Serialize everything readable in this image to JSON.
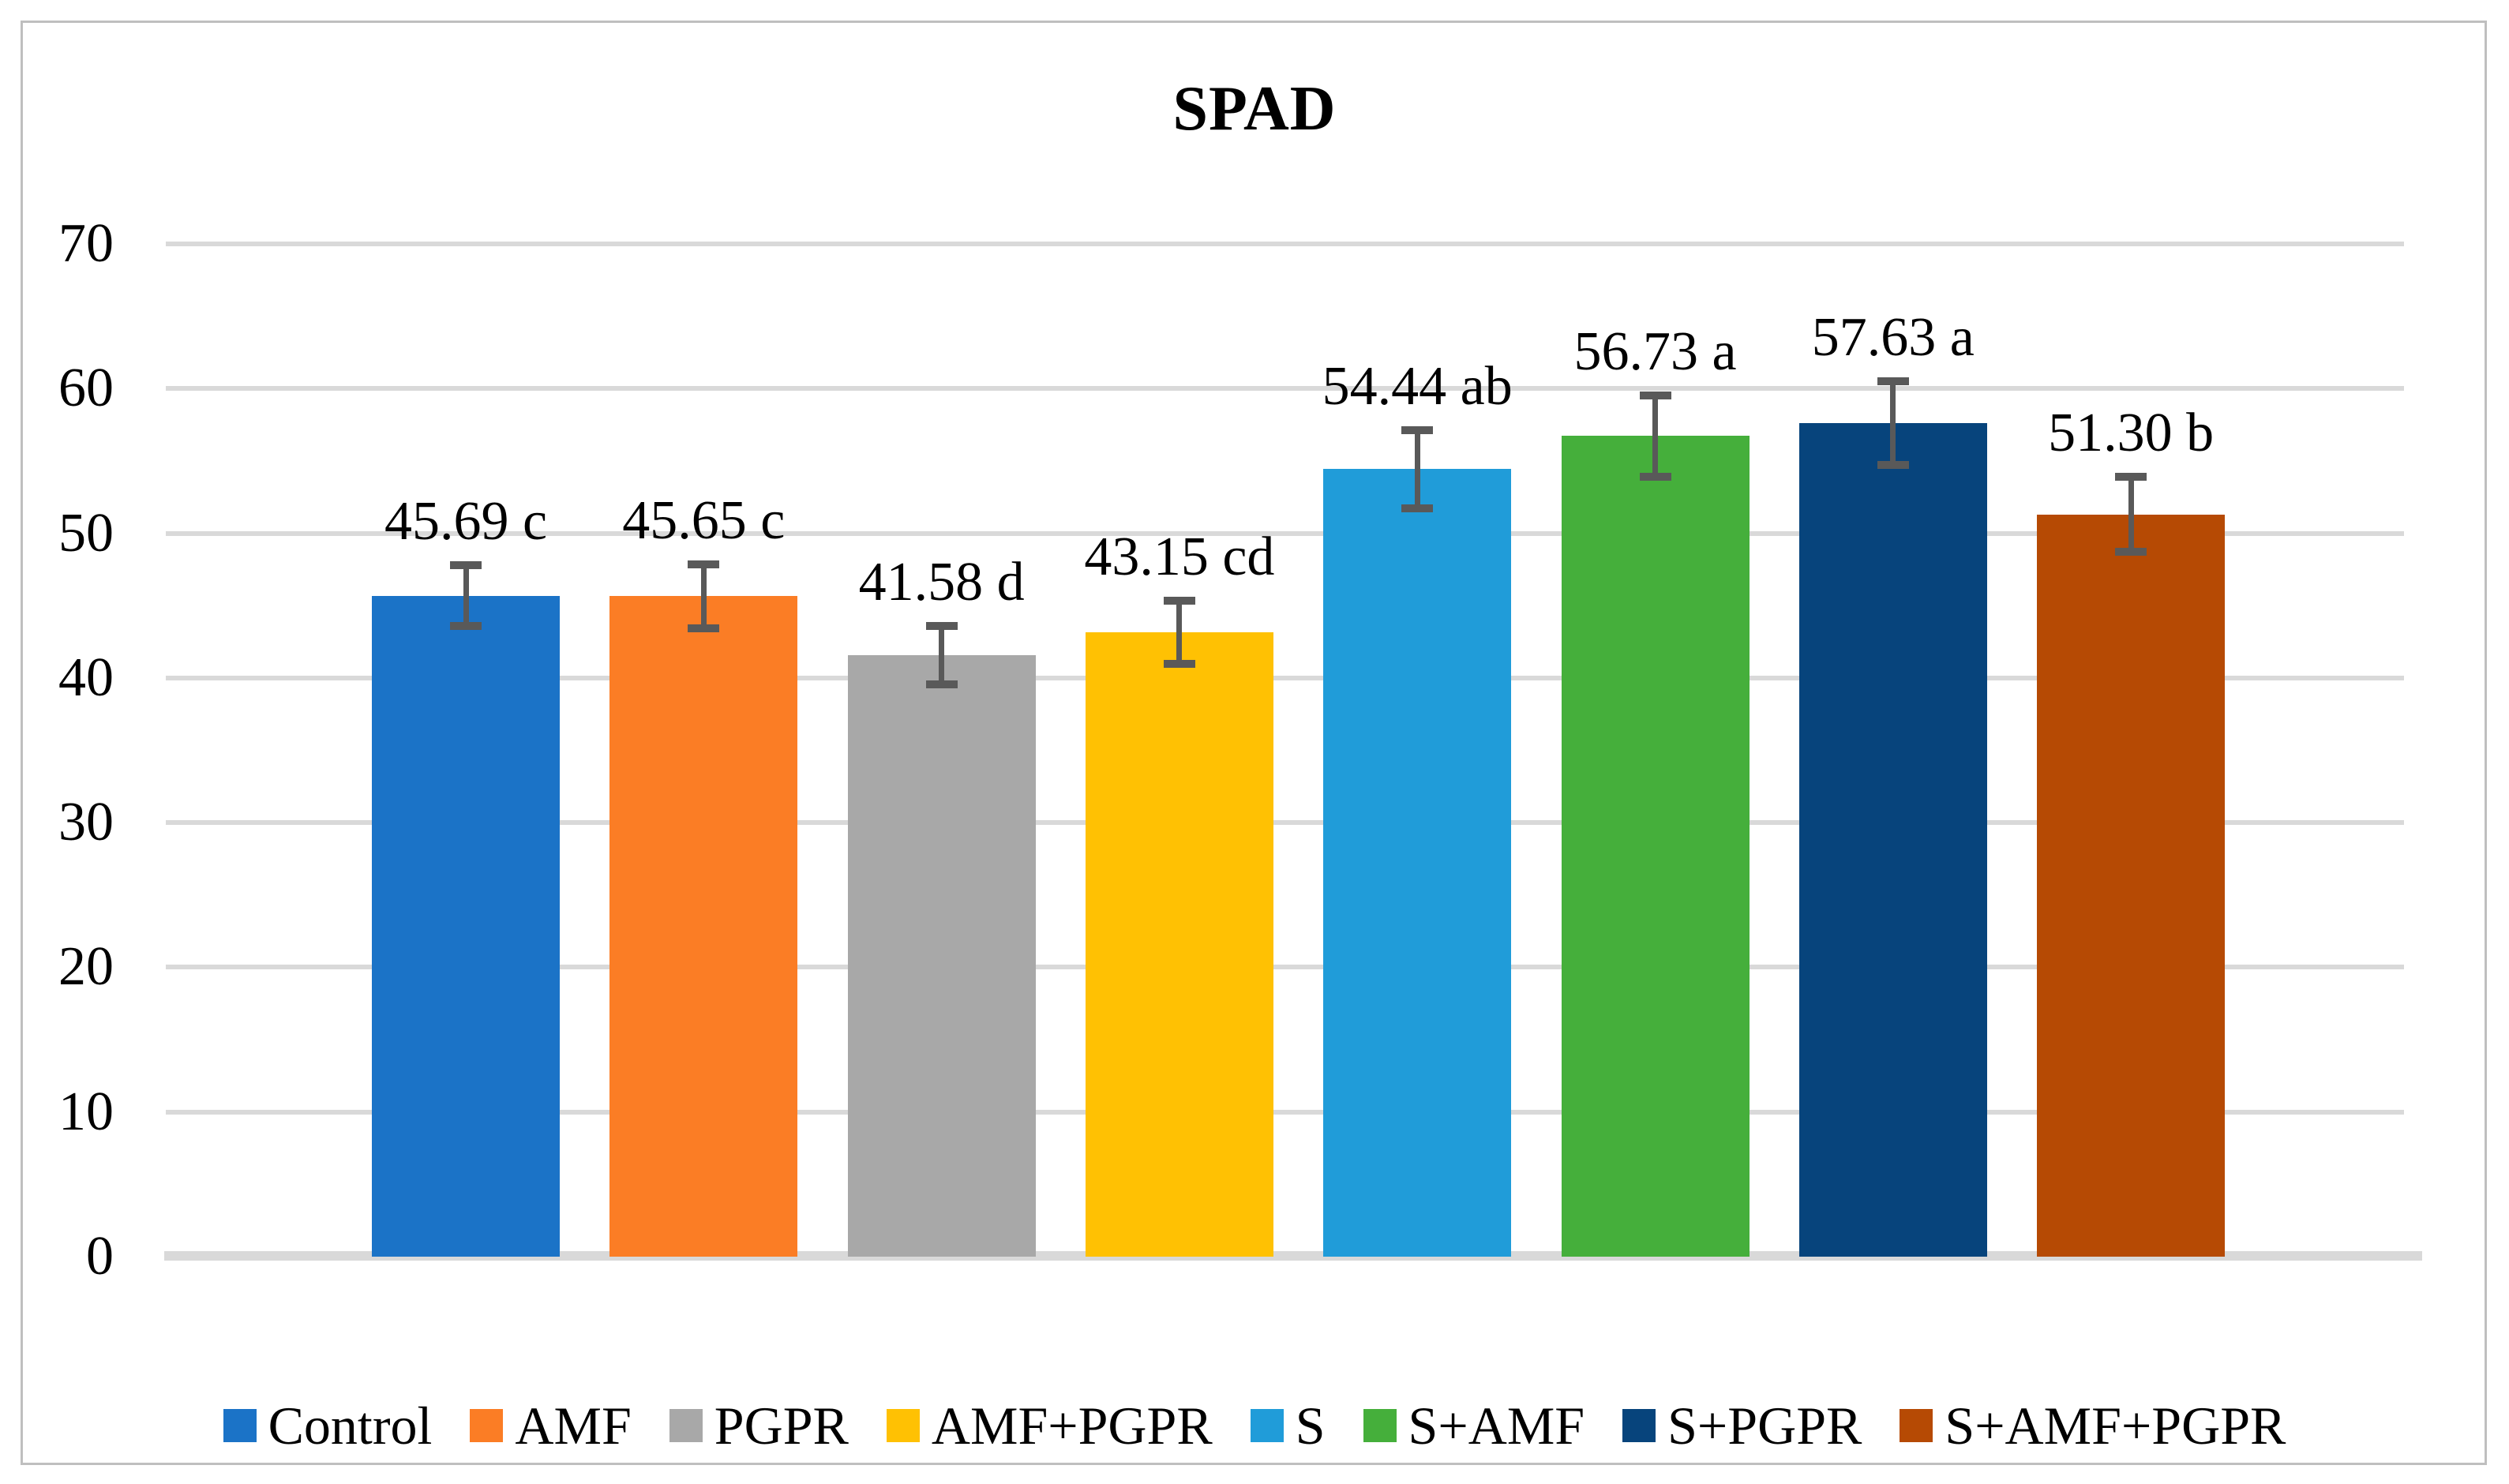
{
  "chart_data": {
    "type": "bar",
    "title": "SPAD",
    "categories": [
      "Control",
      "AMF",
      "PGPR",
      "AMF+PGPR",
      "S",
      "S+AMF",
      "S+PGPR",
      "S+AMF+PGPR"
    ],
    "values": [
      45.69,
      45.65,
      41.58,
      43.15,
      54.44,
      56.73,
      57.63,
      51.3
    ],
    "data_labels": [
      "45.69 c",
      "45.65 c",
      "41.58 d",
      "43.15 cd",
      "54.44 ab",
      "56.73 a",
      "57.63 a",
      "51.30 b"
    ],
    "significance_letters": [
      "c",
      "c",
      "d",
      "cd",
      "ab",
      "a",
      "a",
      "b"
    ],
    "error_bars": [
      2.1,
      2.2,
      2.0,
      2.2,
      2.7,
      2.8,
      2.9,
      2.6
    ],
    "bar_colors": [
      "#1B73C7",
      "#FB7D25",
      "#A8A8A8",
      "#FFC103",
      "#209CD9",
      "#45AF3B",
      "#07447C",
      "#B64A04"
    ],
    "ylim": [
      0,
      70
    ],
    "yticks": [
      0,
      10,
      20,
      30,
      40,
      50,
      60,
      70
    ],
    "ytick_labels": [
      "0",
      "10",
      "20",
      "30",
      "40",
      "50",
      "60",
      "70"
    ],
    "xlabel": "",
    "ylabel": "",
    "grid": true,
    "legend_position": "bottom",
    "legend": [
      "Control",
      "AMF",
      "PGPR",
      "AMF+PGPR",
      "S",
      "S+AMF",
      "S+PGPR",
      "S+AMF+PGPR"
    ]
  },
  "styles": {
    "background": "#FFFFFF",
    "text_color": "#000000",
    "gridline_color": "#D9D9D9",
    "axis_line_color": "#D9D9D9",
    "error_bar_color": "#595959",
    "border_color": "#BFBFBF"
  }
}
